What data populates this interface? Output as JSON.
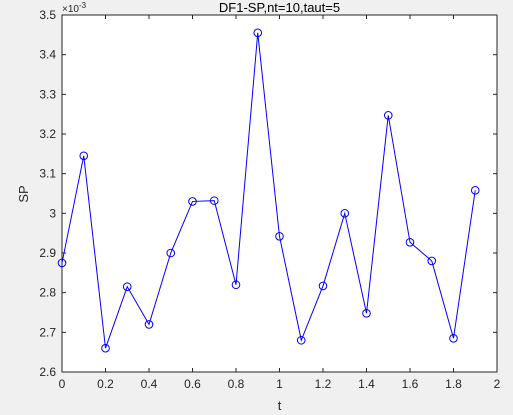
{
  "colors": {
    "background": "#f0f0f0",
    "plot_background": "#ffffff",
    "axis": "#262626",
    "series": "#0000ff"
  },
  "chart_data": {
    "type": "line",
    "title": "DF1-SP,nt=10,taut=5",
    "xlabel": "t",
    "ylabel": "SP",
    "y_exponent_label": "×10",
    "y_exponent_power": "-3",
    "xlim": [
      0,
      2
    ],
    "ylim": [
      2.6,
      3.5
    ],
    "y_scale_factor": 0.001,
    "x_ticks": [
      0,
      0.2,
      0.4,
      0.6,
      0.8,
      1,
      1.2,
      1.4,
      1.6,
      1.8,
      2
    ],
    "x_tick_labels": [
      "0",
      "0.2",
      "0.4",
      "0.6",
      "0.8",
      "1",
      "1.2",
      "1.4",
      "1.6",
      "1.8",
      "2"
    ],
    "y_ticks": [
      2.6,
      2.7,
      2.8,
      2.9,
      3.0,
      3.1,
      3.2,
      3.3,
      3.4,
      3.5
    ],
    "y_tick_labels": [
      "2.6",
      "2.7",
      "2.8",
      "2.9",
      "3",
      "3.1",
      "3.2",
      "3.3",
      "3.4",
      "3.5"
    ],
    "grid": false,
    "marker": "circle",
    "series": [
      {
        "x": [
          0,
          0.1,
          0.2,
          0.3,
          0.4,
          0.5,
          0.6,
          0.7,
          0.8,
          0.9,
          1.0,
          1.1,
          1.2,
          1.3,
          1.4,
          1.5,
          1.6,
          1.7,
          1.8,
          1.9
        ],
        "y": [
          2.875,
          3.145,
          2.66,
          2.815,
          2.72,
          2.9,
          3.03,
          3.032,
          2.82,
          3.455,
          2.942,
          2.68,
          2.817,
          3.0,
          2.748,
          3.247,
          2.927,
          2.88,
          2.685,
          3.058
        ]
      }
    ]
  }
}
